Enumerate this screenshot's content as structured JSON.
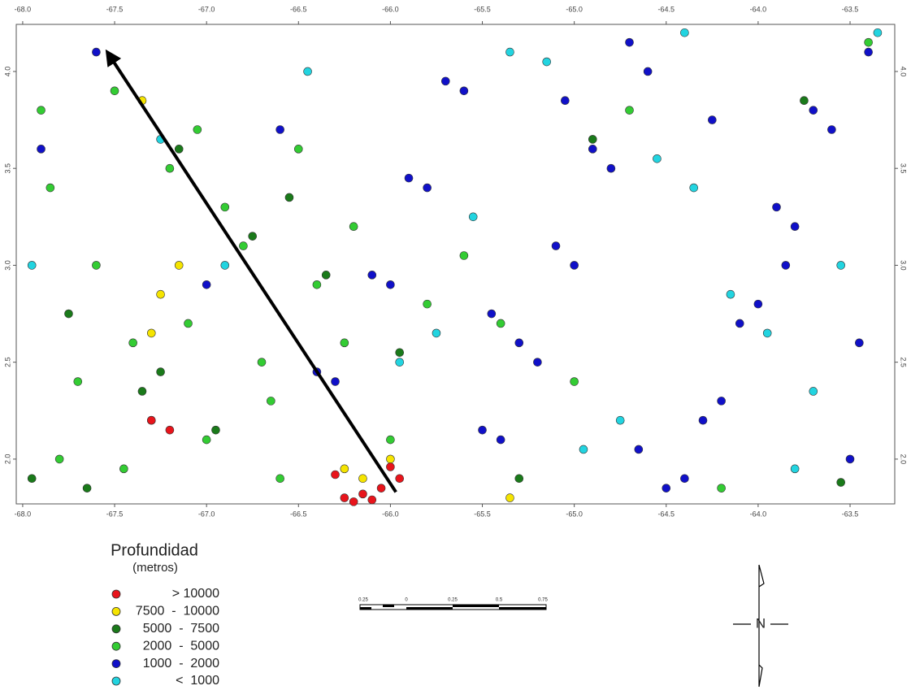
{
  "chart_data": {
    "type": "scatter",
    "xlim": [
      -68.035,
      -63.257
    ],
    "ylim": [
      1.769,
      4.243
    ],
    "xticks": [
      {
        "value": -68,
        "label": "-68.0"
      },
      -67.5,
      {
        "value": -67,
        "label": "-67.0"
      },
      -66.5,
      {
        "value": -66,
        "label": "-66.0"
      },
      -65.5,
      {
        "value": -65,
        "label": "-65.0"
      },
      -64.5,
      {
        "value": -64,
        "label": "-64.0"
      },
      -63.5
    ],
    "yticks": [
      {
        "value": 2,
        "label": "2.0"
      },
      2.5,
      {
        "value": 3,
        "label": "3.0"
      },
      3.5,
      {
        "value": 4,
        "label": "4.0"
      }
    ],
    "series": [
      {
        "name": "> 10000",
        "color": "#e8141b",
        "x": [
          -66.25,
          -66.2,
          -66.15,
          -66.1,
          -66.05,
          -66.3,
          -66.0,
          -67.3,
          -67.2,
          -65.95
        ],
        "values": [
          1.8,
          1.78,
          1.82,
          1.79,
          1.85,
          1.92,
          1.96,
          2.2,
          2.15,
          1.9
        ]
      },
      {
        "name": "7500  -  10000",
        "color": "#f5e400",
        "x": [
          -67.35,
          -67.15,
          -67.25,
          -67.3,
          -66.25,
          -66.15,
          -66.0,
          -65.35
        ],
        "values": [
          3.85,
          3.0,
          2.85,
          2.65,
          1.95,
          1.9,
          2.0,
          1.8
        ]
      },
      {
        "name": "5000  -  7500",
        "color": "#1a7a1a",
        "x": [
          -67.95,
          -67.65,
          -67.35,
          -67.15,
          -66.95,
          -66.55,
          -66.35,
          -65.95,
          -65.3,
          -64.9,
          -63.75,
          -63.55,
          -67.75,
          -67.25,
          -66.75
        ],
        "values": [
          1.9,
          1.85,
          2.35,
          3.6,
          2.15,
          3.35,
          2.95,
          2.55,
          1.9,
          3.65,
          3.85,
          1.88,
          2.75,
          2.45,
          3.15
        ]
      },
      {
        "name": "2000  -  5000",
        "color": "#33cc33",
        "x": [
          -67.9,
          -67.7,
          -67.5,
          -67.3,
          -67.1,
          -66.9,
          -66.7,
          -66.5,
          -67.8,
          -67.6,
          -67.4,
          -67.2,
          -67.0,
          -66.8,
          -66.6,
          -66.4,
          -66.2,
          -65.8,
          -65.4,
          -64.2,
          -67.85,
          -67.45,
          -67.05,
          -66.65,
          -66.25,
          -65.6,
          -65.0,
          -63.4,
          -64.7,
          -66.0
        ],
        "values": [
          3.8,
          2.4,
          3.9,
          2.2,
          2.7,
          3.3,
          2.5,
          3.6,
          2.0,
          3.0,
          2.6,
          3.5,
          2.1,
          3.1,
          1.9,
          2.9,
          3.2,
          2.8,
          2.7,
          1.85,
          3.4,
          1.95,
          3.7,
          2.3,
          2.6,
          3.05,
          2.4,
          4.15,
          3.8,
          2.1
        ]
      },
      {
        "name": "1000  -  2000",
        "color": "#1010c8",
        "x": [
          -63.4,
          -63.6,
          -63.8,
          -64.0,
          -64.2,
          -64.4,
          -64.6,
          -64.8,
          -65.0,
          -65.2,
          -65.4,
          -65.6,
          -65.8,
          -66.0,
          -66.3,
          -63.5,
          -63.7,
          -63.9,
          -64.1,
          -64.3,
          -64.5,
          -64.7,
          -64.9,
          -65.1,
          -65.3,
          -65.5,
          -65.7,
          -65.9,
          -66.1,
          -66.4,
          -63.45,
          -63.85,
          -64.25,
          -64.65,
          -65.05,
          -65.45,
          -66.6,
          -67.0,
          -67.6,
          -67.9
        ],
        "values": [
          4.1,
          3.7,
          3.2,
          2.8,
          2.3,
          1.9,
          4.0,
          3.5,
          3.0,
          2.5,
          2.1,
          3.9,
          3.4,
          2.9,
          2.4,
          2.0,
          3.8,
          3.3,
          2.7,
          2.2,
          1.85,
          4.15,
          3.6,
          3.1,
          2.6,
          2.15,
          3.95,
          3.45,
          2.95,
          2.45,
          2.6,
          3.0,
          3.75,
          2.05,
          3.85,
          2.75,
          3.7,
          2.9,
          4.1,
          3.6
        ]
      },
      {
        "name": "<  1000",
        "color": "#22d4e0",
        "x": [
          -63.35,
          -63.55,
          -63.95,
          -64.35,
          -64.75,
          -65.15,
          -65.55,
          -65.95,
          -66.45,
          -67.25,
          -63.7,
          -64.15,
          -64.55,
          -64.95,
          -65.35,
          -65.75,
          -66.9,
          -67.95,
          -63.8,
          -64.4
        ],
        "values": [
          4.2,
          3.0,
          2.65,
          3.4,
          2.2,
          4.05,
          3.25,
          2.5,
          4.0,
          3.65,
          2.35,
          2.85,
          3.55,
          2.05,
          4.1,
          2.65,
          3.0,
          3.0,
          1.95,
          4.2
        ]
      }
    ],
    "arrow": {
      "from": [
        -65.97,
        1.83
      ],
      "to": [
        -67.54,
        4.1
      ]
    },
    "legend_title": "Profundidad",
    "legend_subtitle": "(metros)",
    "scale_bar_labels": [
      "0.25",
      "0",
      "0.25",
      "0.5",
      "0.75"
    ],
    "north_label": "N"
  }
}
